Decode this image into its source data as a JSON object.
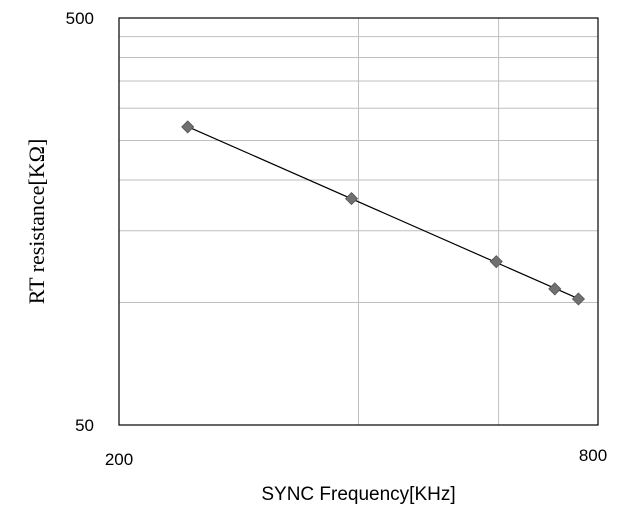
{
  "chart_data": {
    "type": "scatter",
    "title": "",
    "xlabel": "SYNC Frequency[KHz]",
    "ylabel": "RT resistance[KΩ]",
    "x_scale": "log",
    "y_scale": "log",
    "xlim": [
      200,
      800
    ],
    "ylim": [
      50,
      500
    ],
    "x_ticks": [
      {
        "value": 200,
        "label": "200"
      },
      {
        "value": 800,
        "label": "800"
      }
    ],
    "y_ticks": [
      {
        "value": 50,
        "label": "50"
      },
      {
        "value": 500,
        "label": "500"
      }
    ],
    "x_gridlines": [
      400,
      600
    ],
    "y_gridlines": [
      100,
      150,
      200,
      250,
      300,
      350,
      400,
      450
    ],
    "grid": true,
    "legend": "none",
    "trendline": true,
    "series": [
      {
        "color": "#707070",
        "marker": "diamond",
        "points": [
          {
            "x": 244,
            "y": 270
          },
          {
            "x": 392,
            "y": 180
          },
          {
            "x": 596,
            "y": 126
          },
          {
            "x": 706,
            "y": 108
          },
          {
            "x": 756,
            "y": 102
          }
        ]
      }
    ],
    "colors": {
      "axis": "#000000",
      "grid": "#bfbfbf",
      "line": "#000000",
      "marker": "#707070"
    }
  }
}
